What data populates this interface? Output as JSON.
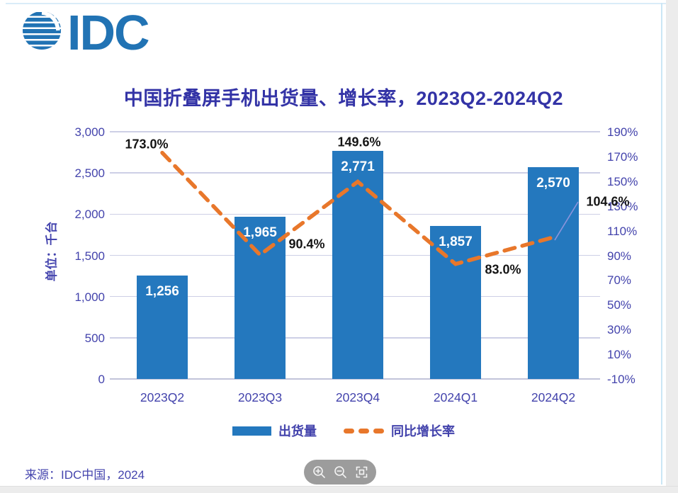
{
  "logo": {
    "text": "IDC",
    "color": "#2173B4"
  },
  "source": "来源：IDC中国，2024",
  "toolbar": {
    "buttons": [
      {
        "icon": "zoom-in-icon"
      },
      {
        "icon": "zoom-out-icon"
      },
      {
        "icon": "fit-view-icon"
      }
    ]
  },
  "chart_data": {
    "type": "bar+line combo",
    "title": "中国折叠屏手机出货量、增长率，2023Q2-2024Q2",
    "categories": [
      "2023Q2",
      "2023Q3",
      "2023Q4",
      "2024Q1",
      "2024Q2"
    ],
    "series": [
      {
        "name": "出货量",
        "type": "bar",
        "axis": "left",
        "color": "#2478BE",
        "values": [
          1256,
          1965,
          2771,
          1857,
          2570
        ],
        "labels": [
          "1,256",
          "1,965",
          "2,771",
          "1,857",
          "2,570"
        ]
      },
      {
        "name": "同比增长率",
        "type": "line",
        "style": "dashed",
        "axis": "right",
        "color": "#E8772B",
        "values": [
          173.0,
          90.4,
          149.6,
          83.0,
          104.6
        ],
        "labels": [
          "173.0%",
          "90.4%",
          "149.6%",
          "83.0%",
          "104.6%"
        ]
      }
    ],
    "left_axis": {
      "label": "单位：千台",
      "lim": [
        0,
        3000
      ],
      "ticks": [
        "3,000",
        "2,500",
        "2,000",
        "1,500",
        "1,000",
        "500",
        "0"
      ]
    },
    "right_axis": {
      "lim": [
        -10,
        190
      ],
      "ticks": [
        "190%",
        "170%",
        "150%",
        "130%",
        "110%",
        "90%",
        "70%",
        "50%",
        "30%",
        "10%",
        "-10%"
      ]
    },
    "grid": "horizontal",
    "legend_position": "bottom"
  }
}
